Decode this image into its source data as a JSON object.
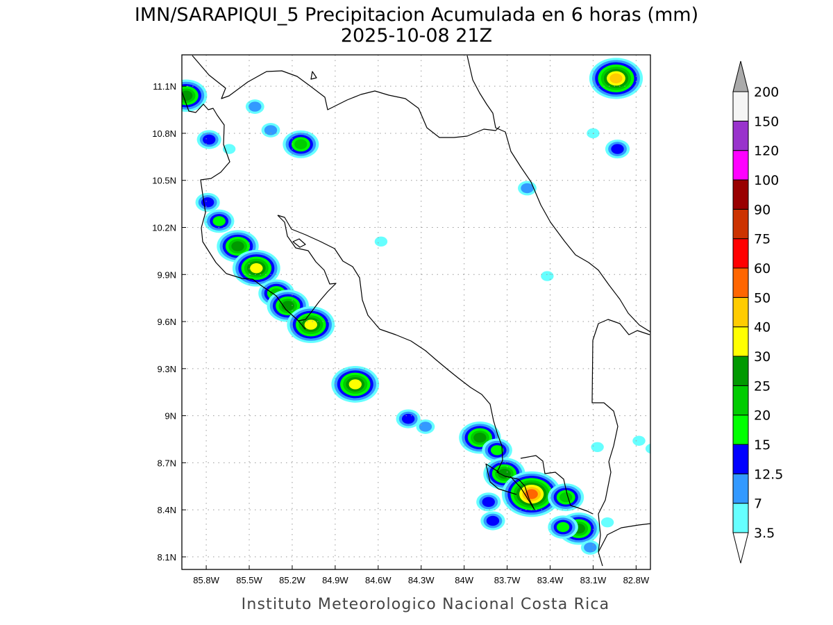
{
  "title_line1": "IMN/SARAPIQUI_5 Precipitacion Acumulada en 6 horas (mm)",
  "title_line2": "2025-10-08 21Z",
  "footer": "Instituto Meteorologico Nacional Costa Rica",
  "map": {
    "lon_range": [
      -85.97,
      -82.7
    ],
    "lat_range": [
      8.02,
      11.3
    ],
    "lon_ticks": [
      {
        "lon": -85.8,
        "label": "85.8W"
      },
      {
        "lon": -85.5,
        "label": "85.5W"
      },
      {
        "lon": -85.2,
        "label": "85.2W"
      },
      {
        "lon": -84.9,
        "label": "84.9W"
      },
      {
        "lon": -84.6,
        "label": "84.6W"
      },
      {
        "lon": -84.3,
        "label": "84.3W"
      },
      {
        "lon": -84.0,
        "label": "84W"
      },
      {
        "lon": -83.7,
        "label": "83.7W"
      },
      {
        "lon": -83.4,
        "label": "83.4W"
      },
      {
        "lon": -83.1,
        "label": "83.1W"
      },
      {
        "lon": -82.8,
        "label": "82.8W"
      }
    ],
    "lat_ticks": [
      {
        "lat": 11.1,
        "label": "11.1N"
      },
      {
        "lat": 10.8,
        "label": "10.8N"
      },
      {
        "lat": 10.5,
        "label": "10.5N"
      },
      {
        "lat": 10.2,
        "label": "10.2N"
      },
      {
        "lat": 9.9,
        "label": "9.9N"
      },
      {
        "lat": 9.6,
        "label": "9.6N"
      },
      {
        "lat": 9.3,
        "label": "9.3N"
      },
      {
        "lat": 9.0,
        "label": "9N"
      },
      {
        "lat": 8.7,
        "label": "8.7N"
      },
      {
        "lat": 8.4,
        "label": "8.4N"
      },
      {
        "lat": 8.1,
        "label": "8.1N"
      }
    ],
    "grid": true,
    "rain_cells": [
      {
        "lon": -85.94,
        "lat": 11.04,
        "peak": 25
      },
      {
        "lon": -85.78,
        "lat": 10.76,
        "peak": 12.5
      },
      {
        "lon": -85.46,
        "lat": 10.97,
        "peak": 7
      },
      {
        "lon": -85.35,
        "lat": 10.82,
        "peak": 7
      },
      {
        "lon": -85.14,
        "lat": 10.73,
        "peak": 20
      },
      {
        "lon": -85.79,
        "lat": 10.36,
        "peak": 12.5
      },
      {
        "lon": -85.71,
        "lat": 10.24,
        "peak": 15
      },
      {
        "lon": -85.58,
        "lat": 10.08,
        "peak": 25
      },
      {
        "lon": -85.45,
        "lat": 9.94,
        "peak": 30
      },
      {
        "lon": -85.31,
        "lat": 9.78,
        "peak": 20
      },
      {
        "lon": -85.23,
        "lat": 9.7,
        "peak": 25
      },
      {
        "lon": -85.07,
        "lat": 9.58,
        "peak": 30
      },
      {
        "lon": -84.76,
        "lat": 9.2,
        "peak": 30
      },
      {
        "lon": -84.39,
        "lat": 8.98,
        "peak": 12.5
      },
      {
        "lon": -84.27,
        "lat": 8.93,
        "peak": 7
      },
      {
        "lon": -83.89,
        "lat": 8.86,
        "peak": 25
      },
      {
        "lon": -83.77,
        "lat": 8.78,
        "peak": 15
      },
      {
        "lon": -83.72,
        "lat": 8.63,
        "peak": 25
      },
      {
        "lon": -83.53,
        "lat": 8.5,
        "peak": 50
      },
      {
        "lon": -83.29,
        "lat": 8.48,
        "peak": 20
      },
      {
        "lon": -83.83,
        "lat": 8.45,
        "peak": 12.5
      },
      {
        "lon": -83.8,
        "lat": 8.33,
        "peak": 12.5
      },
      {
        "lon": -83.2,
        "lat": 8.28,
        "peak": 25
      },
      {
        "lon": -83.31,
        "lat": 8.29,
        "peak": 15
      },
      {
        "lon": -83.12,
        "lat": 8.16,
        "peak": 7
      },
      {
        "lon": -82.94,
        "lat": 11.15,
        "peak": 40
      },
      {
        "lon": -82.93,
        "lat": 10.7,
        "peak": 12.5
      },
      {
        "lon": -83.1,
        "lat": 10.8,
        "peak": 3.5
      },
      {
        "lon": -83.56,
        "lat": 10.45,
        "peak": 7
      },
      {
        "lon": -83.42,
        "lat": 9.89,
        "peak": 3.5
      },
      {
        "lon": -85.64,
        "lat": 10.7,
        "peak": 3.5
      },
      {
        "lon": -84.58,
        "lat": 10.11,
        "peak": 3.5
      },
      {
        "lon": -83.07,
        "lat": 8.8,
        "peak": 3.5
      },
      {
        "lon": -82.78,
        "lat": 8.84,
        "peak": 3.5
      },
      {
        "lon": -82.69,
        "lat": 8.79,
        "peak": 3.5
      },
      {
        "lon": -83.0,
        "lat": 8.32,
        "peak": 3.5
      }
    ]
  },
  "colorbar": {
    "levels": [
      "3.5",
      "7",
      "12.5",
      "15",
      "20",
      "25",
      "30",
      "40",
      "50",
      "60",
      "75",
      "90",
      "100",
      "120",
      "150",
      "200"
    ],
    "colors": [
      "#ffffff",
      "#66ffff",
      "#3399ff",
      "#0000ff",
      "#00ff00",
      "#00cc00",
      "#009900",
      "#ffff00",
      "#ffcc00",
      "#ff6600",
      "#ff0000",
      "#cc3300",
      "#990000",
      "#ff00ff",
      "#9933cc",
      "#f5f5f5",
      "#aaaaaa"
    ]
  }
}
